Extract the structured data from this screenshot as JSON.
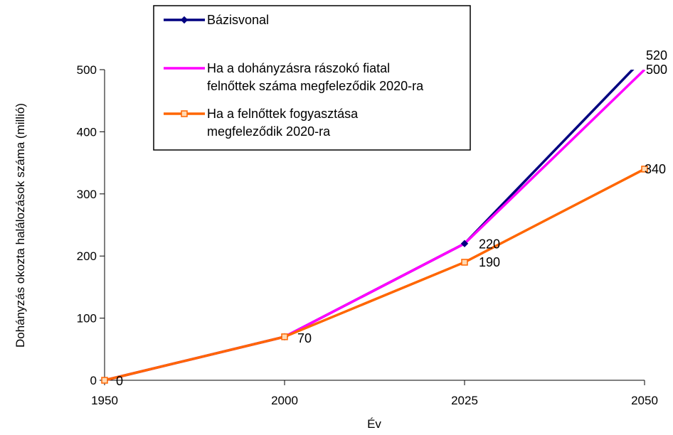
{
  "chart_data": {
    "type": "line",
    "title": "",
    "xlabel": "Év",
    "ylabel": "Dohányzás okozta halálozások száma (millió)",
    "x": [
      1950,
      2000,
      2025,
      2050
    ],
    "x_ticks": [
      "1950",
      "2000",
      "2025",
      "2050"
    ],
    "ylim": [
      0,
      500
    ],
    "y_ticks": [
      "0",
      "100",
      "200",
      "300",
      "400",
      "500"
    ],
    "grid": false,
    "legend_position": "top-center",
    "series": [
      {
        "name": "Bázisvonal",
        "name_lines": [
          "Bázisvonal"
        ],
        "values": [
          0,
          70,
          220,
          520
        ],
        "color": "#000080",
        "marker": "diamond"
      },
      {
        "name": "Ha a dohányzásra rászokó fiatal felnőttek száma megfeleződik 2020-ra",
        "name_lines": [
          "Ha a dohányzásra rászokó fiatal",
          "felnőttek száma megfeleződik 2020-ra"
        ],
        "values": [
          0,
          70,
          220,
          500
        ],
        "color": "#ff00ff",
        "marker": "none"
      },
      {
        "name": "Ha a felnőttek fogyasztása megfeleződik 2020-ra",
        "name_lines": [
          "Ha a felnőttek fogyasztása",
          "megfeleződik 2020-ra"
        ],
        "values": [
          0,
          70,
          190,
          340
        ],
        "color": "#ff6600",
        "marker": "square"
      }
    ],
    "data_labels": [
      {
        "text": "0",
        "x": 1950,
        "y": 0
      },
      {
        "text": "70",
        "x": 2000,
        "y": 70
      },
      {
        "text": "220",
        "x": 2025,
        "y": 220
      },
      {
        "text": "190",
        "x": 2025,
        "y": 190
      },
      {
        "text": "520",
        "x": 2050,
        "y": 520
      },
      {
        "text": "500",
        "x": 2050,
        "y": 500
      },
      {
        "text": "340",
        "x": 2050,
        "y": 340
      }
    ]
  }
}
